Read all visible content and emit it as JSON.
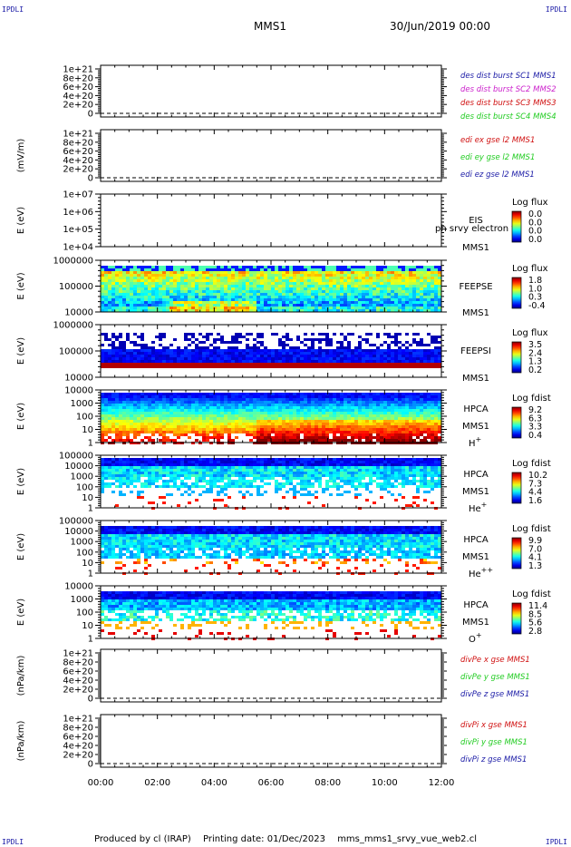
{
  "corner_labels": {
    "tl": "IPDLI",
    "tr": "IPDLI",
    "bl": "IPDLI",
    "br": "IPDLI"
  },
  "header": {
    "mission": "MMS1",
    "datetime": "30/Jun/2019 00:00"
  },
  "footer": {
    "produced_by": "Produced by cl (IRAP)",
    "printing_date": "Printing date: 01/Dec/2023",
    "script": "mms_mms1_srvy_vue_web2.cl"
  },
  "colors": {
    "blue": "#1515c8",
    "magenta": "#cc22cc",
    "red": "#d01010",
    "green": "#22cc22",
    "blue_text": "#1a1aa6"
  },
  "chart_data": [
    {
      "type": "line",
      "ylabel": "",
      "yticks": [
        "1e+21",
        "8e+20",
        "6e+20",
        "4e+20",
        "2e+20",
        "0"
      ],
      "series": [
        {
          "name": "des dist burst SC1 MMS1",
          "color": "#1a1aa6"
        },
        {
          "name": "des dist burst SC2 MMS2",
          "color": "#cc22cc"
        },
        {
          "name": "des dist burst SC3 MMS3",
          "color": "#d01010"
        },
        {
          "name": "des dist burst SC4 MMS4",
          "color": "#22cc22"
        }
      ]
    },
    {
      "type": "line",
      "ylabel": "(mV/m)",
      "yticks": [
        "1e+21",
        "8e+20",
        "6e+20",
        "4e+20",
        "2e+20",
        "0"
      ],
      "series": [
        {
          "name": "edi ex gse l2 MMS1",
          "color": "#d01010"
        },
        {
          "name": "edi ey gse l2 MMS1",
          "color": "#22cc22"
        },
        {
          "name": "edi ez gse l2 MMS1",
          "color": "#1a1aa6"
        }
      ]
    },
    {
      "type": "heatmap",
      "ylabel": "E (eV)",
      "yticks": [
        "1e+07",
        "1e+06",
        "1e+05",
        "1e+04"
      ],
      "log": true,
      "ylim": [
        10000,
        10000000
      ],
      "instrument": [
        "EIS",
        "MMS1"
      ],
      "overlay": "ph srvy electron to",
      "cb_title": "Log flux",
      "cb_ticks": [
        "0.0",
        "0.0",
        "0.0",
        "0.0"
      ],
      "fill": "empty"
    },
    {
      "type": "heatmap",
      "ylabel": "E (eV)",
      "yticks": [
        "1000000",
        "100000",
        "10000"
      ],
      "log": true,
      "ylim": [
        10000,
        1000000
      ],
      "instrument": [
        "FEEPSE",
        "MMS1"
      ],
      "cb_title": "Log flux",
      "cb_ticks": [
        "1.8",
        "1.0",
        "0.3",
        "-0.4"
      ],
      "fill": "feepse"
    },
    {
      "type": "heatmap",
      "ylabel": "E (eV)",
      "yticks": [
        "1000000",
        "100000",
        "10000"
      ],
      "log": true,
      "ylim": [
        10000,
        1000000
      ],
      "instrument": [
        "FEEPSI",
        "MMS1"
      ],
      "cb_title": "Log flux",
      "cb_ticks": [
        "3.5",
        "2.4",
        "1.3",
        "0.2"
      ],
      "fill": "feepsi"
    },
    {
      "type": "heatmap",
      "ylabel": "E (eV)",
      "yticks": [
        "10000",
        "1000",
        "100",
        "10",
        "1"
      ],
      "log": true,
      "ylim": [
        1,
        40000
      ],
      "instrument": [
        "HPCA",
        "MMS1"
      ],
      "species": "H",
      "species_sup": "+",
      "cb_title": "Log fdist",
      "cb_ticks": [
        "9.2",
        "6.3",
        "3.3",
        "0.4"
      ],
      "fill": "hplus"
    },
    {
      "type": "heatmap",
      "ylabel": "E (eV)",
      "yticks": [
        "100000",
        "10000",
        "1000",
        "100",
        "10",
        "1"
      ],
      "log": true,
      "ylim": [
        1,
        100000
      ],
      "instrument": [
        "HPCA",
        "MMS1"
      ],
      "species": "He",
      "species_sup": "+",
      "cb_title": "Log fdist",
      "cb_ticks": [
        "10.2",
        "7.3",
        "4.4",
        "1.6"
      ],
      "fill": "heplus"
    },
    {
      "type": "heatmap",
      "ylabel": "E (eV)",
      "yticks": [
        "100000",
        "10000",
        "1000",
        "100",
        "10",
        "1"
      ],
      "log": true,
      "ylim": [
        1,
        100000
      ],
      "instrument": [
        "HPCA",
        "MMS1"
      ],
      "species": "He",
      "species_sup": "++",
      "cb_title": "Log fdist",
      "cb_ticks": [
        "9.9",
        "7.0",
        "4.1",
        "1.3"
      ],
      "fill": "heplusplus"
    },
    {
      "type": "heatmap",
      "ylabel": "E (eV)",
      "yticks": [
        "10000",
        "1000",
        "100",
        "10",
        "1"
      ],
      "log": true,
      "ylim": [
        1,
        40000
      ],
      "instrument": [
        "HPCA",
        "MMS1"
      ],
      "species": "O",
      "species_sup": "+",
      "cb_title": "Log fdist",
      "cb_ticks": [
        "11.4",
        "8.5",
        "5.6",
        "2.8"
      ],
      "fill": "oplus"
    },
    {
      "type": "line",
      "ylabel": "(nPa/km)",
      "yticks": [
        "1e+21",
        "8e+20",
        "6e+20",
        "4e+20",
        "2e+20",
        "0"
      ],
      "series": [
        {
          "name": "divPe x gse MMS1",
          "color": "#d01010"
        },
        {
          "name": "divPe y gse MMS1",
          "color": "#22cc22"
        },
        {
          "name": "divPe z gse MMS1",
          "color": "#1a1aa6"
        }
      ]
    },
    {
      "type": "line",
      "ylabel": "(nPa/km)",
      "yticks": [
        "1e+21",
        "8e+20",
        "6e+20",
        "4e+20",
        "2e+20",
        "0"
      ],
      "series": [
        {
          "name": "divPi x gse MMS1",
          "color": "#d01010"
        },
        {
          "name": "divPi y gse MMS1",
          "color": "#22cc22"
        },
        {
          "name": "divPi z gse MMS1",
          "color": "#1a1aa6"
        }
      ]
    }
  ],
  "x_axis": {
    "ticks": [
      "00:00",
      "02:00",
      "04:00",
      "06:00",
      "08:00",
      "10:00",
      "12:00"
    ]
  }
}
